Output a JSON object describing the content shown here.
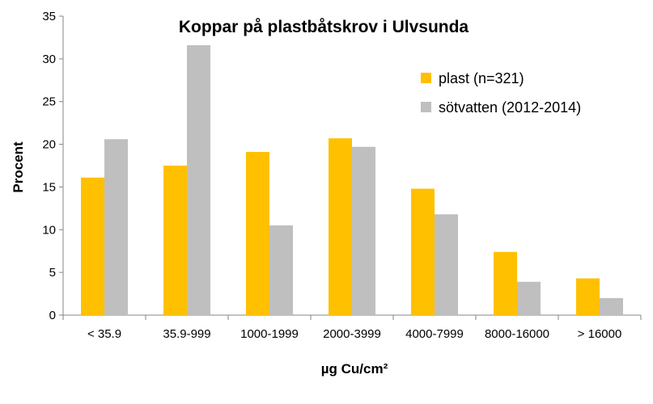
{
  "chart_data": {
    "type": "bar",
    "title": "Koppar på plastbåtskrov i Ulvsunda",
    "xlabel": "µg Cu/cm²",
    "ylabel": "Procent",
    "ylim": [
      0,
      35
    ],
    "yticks": [
      0,
      5,
      10,
      15,
      20,
      25,
      30,
      35
    ],
    "categories": [
      "< 35.9",
      "35.9-999",
      "1000-1999",
      "2000-3999",
      "4000-7999",
      "8000-16000",
      "> 16000"
    ],
    "series": [
      {
        "name": "plast (n=321)",
        "color": "#FFC000",
        "values": [
          16.1,
          17.5,
          19.1,
          20.7,
          14.8,
          7.4,
          4.3
        ]
      },
      {
        "name": "sötvatten (2012-2014)",
        "color": "#BFBFBF",
        "values": [
          20.6,
          31.6,
          10.5,
          19.7,
          11.8,
          3.9,
          2.0
        ]
      }
    ],
    "grid": false,
    "legend_position": "top-right"
  }
}
